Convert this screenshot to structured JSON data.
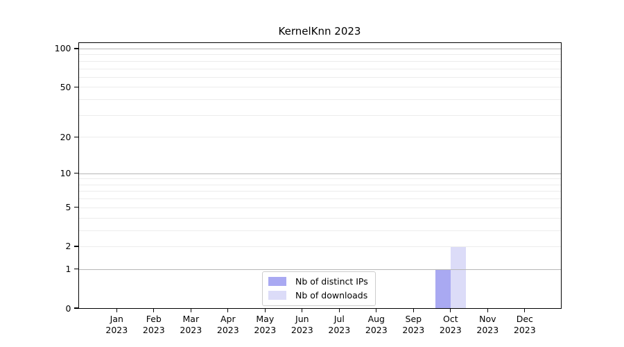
{
  "chart_data": {
    "type": "bar",
    "title": "KernelKnn 2023",
    "categories": [
      "Jan 2023",
      "Feb 2023",
      "Mar 2023",
      "Apr 2023",
      "May 2023",
      "Jun 2023",
      "Jul 2023",
      "Aug 2023",
      "Sep 2023",
      "Oct 2023",
      "Nov 2023",
      "Dec 2023"
    ],
    "series": [
      {
        "name": "Nb of distinct IPs",
        "color": "#a9a9f2",
        "values": [
          0,
          0,
          0,
          0,
          0,
          0,
          0,
          0,
          0,
          1,
          0,
          0
        ]
      },
      {
        "name": "Nb of downloads",
        "color": "#dcdcf8",
        "values": [
          0,
          0,
          0,
          0,
          0,
          0,
          0,
          0,
          0,
          2,
          0,
          0
        ]
      }
    ],
    "xlabel": "",
    "ylabel": "",
    "yscale": "log1p",
    "ytick_values": [
      0,
      1,
      2,
      5,
      10,
      20,
      50,
      100
    ],
    "ytick_labels": [
      "0",
      "1",
      "2",
      "5",
      "10",
      "20",
      "50",
      "100"
    ],
    "ylim": [
      0,
      110
    ],
    "grid": "horizontal",
    "legend_position": "lower center"
  },
  "colors": {
    "axis": "#000000",
    "major_grid": "#b6b6b6",
    "minor_grid": "#ececec",
    "legend_border": "#cccccc",
    "background": "#ffffff",
    "text": "#000000"
  }
}
